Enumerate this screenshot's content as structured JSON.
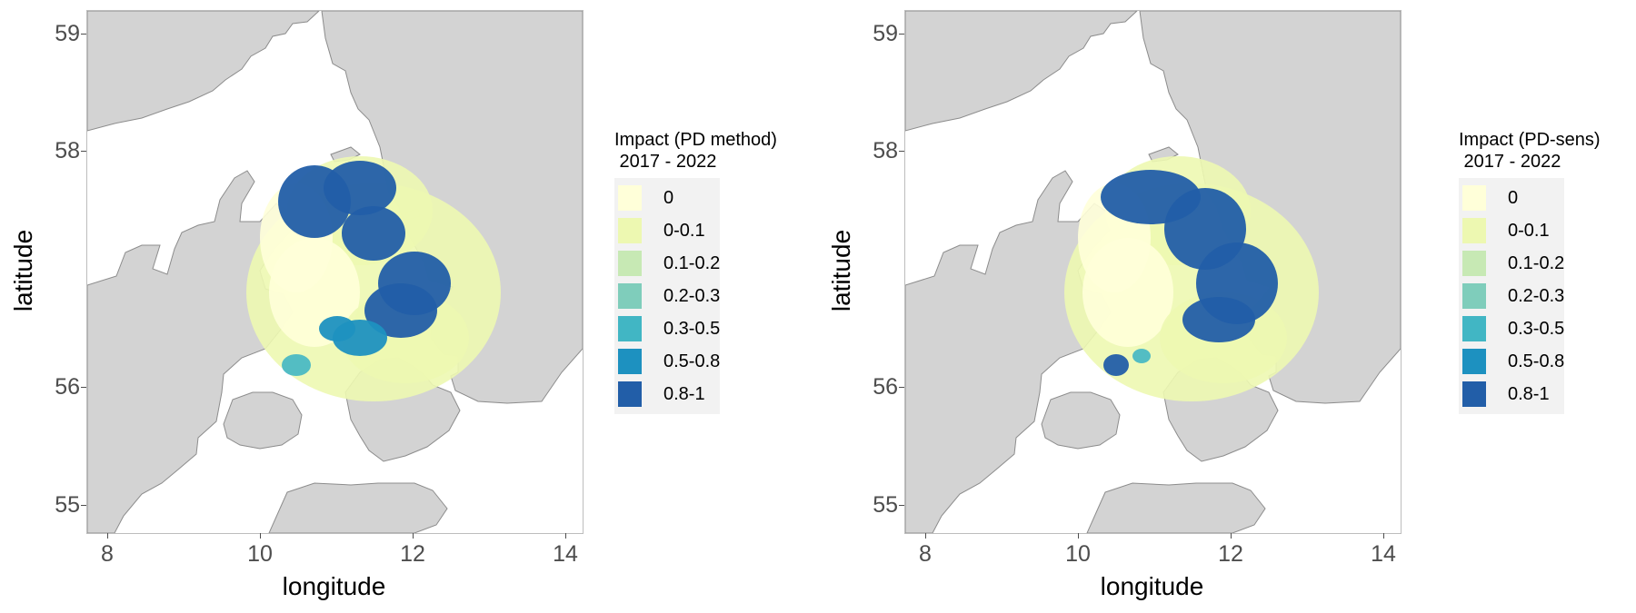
{
  "colors": {
    "land": "#d3d3d3",
    "sea": "#ffffff",
    "coast": "#8c8c8c",
    "scale": [
      "#ffffd9",
      "#edf8b1",
      "#c7e9b4",
      "#7fcdbb",
      "#41b6c4",
      "#1d91c0",
      "#225ea8"
    ]
  },
  "axes": {
    "xlabel": "longitude",
    "ylabel": "latitude",
    "xticks": [
      "8",
      "10",
      "12",
      "14"
    ],
    "yticks": [
      "59",
      "58",
      "56",
      "55"
    ]
  },
  "panels": [
    {
      "legend_title": "Impact (PD method)\n 2017 - 2022",
      "legend_labels": [
        "0",
        "0-0.1",
        "0.1-0.2",
        "0.2-0.3",
        "0.3-0.5",
        "0.5-0.8",
        "0.8-1"
      ]
    },
    {
      "legend_title": "Impact (PD-sens)\n 2017 - 2022",
      "legend_labels": [
        "0",
        "0-0.1",
        "0.1-0.2",
        "0.2-0.3",
        "0.3-0.5",
        "0.5-0.8",
        "0.8-1"
      ]
    }
  ]
}
